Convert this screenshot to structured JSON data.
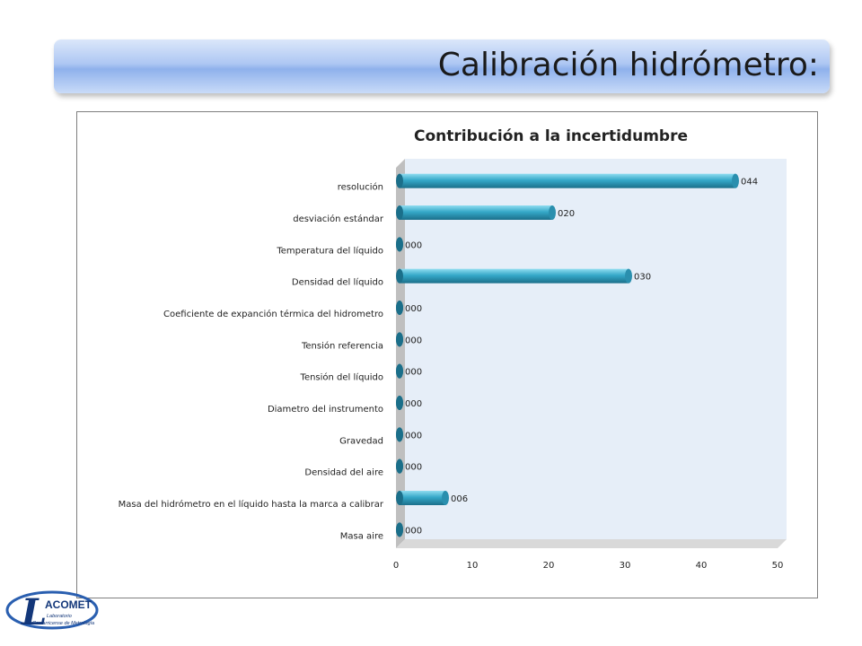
{
  "slide": {
    "title": "Calibración hidrómetro:"
  },
  "logo": {
    "text": "LACOMET Laboratorio Costarricense de Metrología"
  },
  "colors": {
    "bar": "#35a8c8",
    "bar_dark": "#1b6f8a",
    "plot_bg": "#e6eef8",
    "wall": "#bfbfbf",
    "title_band": "#9db9ee"
  },
  "chart_data": {
    "type": "bar",
    "orientation": "horizontal",
    "title": "Contribución a la incertidumbre",
    "xlabel": "",
    "ylabel": "",
    "xlim": [
      0,
      50
    ],
    "xticks": [
      0,
      10,
      20,
      30,
      40,
      50
    ],
    "grid": false,
    "legend": "none",
    "categories": [
      "resolución",
      "desviación estándar",
      "Temperatura del líquido",
      "Densidad del líquido",
      "Coeficiente de expanción térmica del hidrometro",
      "Tensión referencia",
      "Tensión del líquido",
      "Diametro del  instrumento",
      "Gravedad",
      "Densidad del aire",
      "Masa del hidrómetro en el líquido hasta la marca a calibrar",
      "Masa aire"
    ],
    "values": [
      44,
      20,
      0,
      30,
      0,
      0,
      0,
      0,
      0,
      0,
      6,
      0
    ],
    "data_labels": [
      "044",
      "020",
      "000",
      "030",
      "000",
      "000",
      "000",
      "000",
      "000",
      "000",
      "006",
      "000"
    ]
  }
}
